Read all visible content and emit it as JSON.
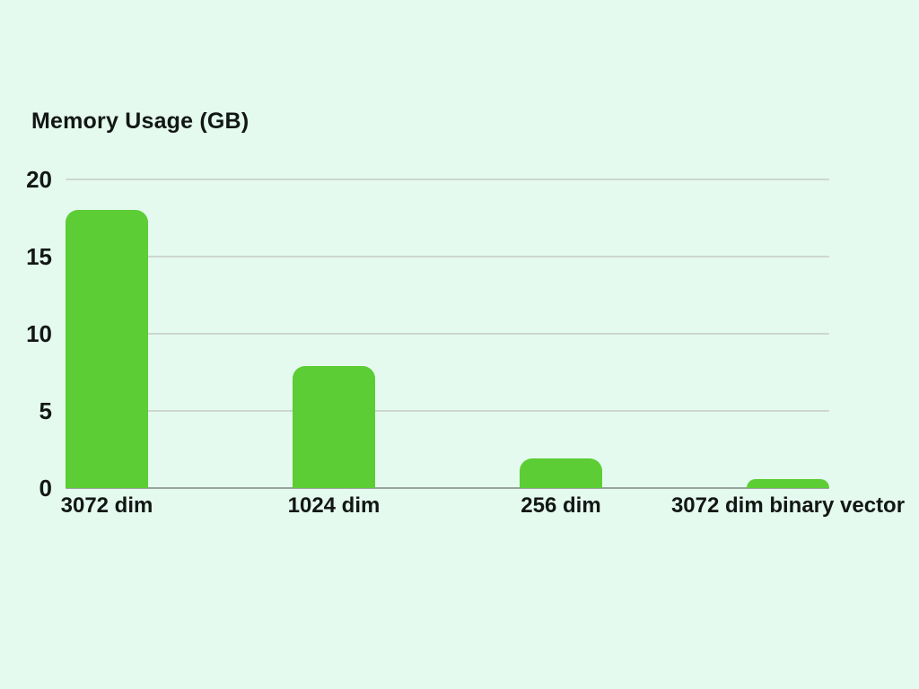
{
  "page": {
    "background_color": "#e4faee",
    "text_color": "#121715"
  },
  "chart_data": {
    "type": "bar",
    "title": "Memory Usage (GB)",
    "categories": [
      "3072 dim",
      "1024 dim",
      "256 dim",
      "3072 dim binary vector"
    ],
    "values": [
      18,
      7.9,
      1.9,
      0.6
    ],
    "xlabel": "",
    "ylabel": "",
    "ylim": [
      0,
      20
    ],
    "yticks": [
      0,
      5,
      10,
      15,
      20
    ],
    "grid": true,
    "legend": "none",
    "bar_color": "#5ccd34",
    "gridline_color": "#cdd6cf",
    "baseline_color": "#99a39b"
  }
}
